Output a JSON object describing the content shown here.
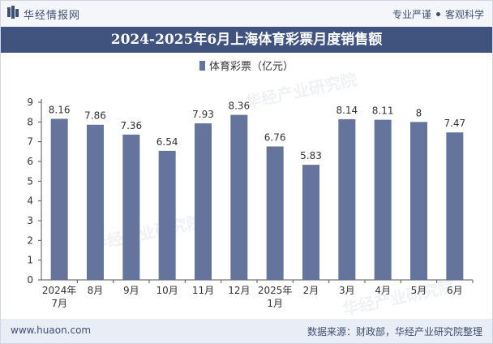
{
  "header": {
    "brand": "华经情报网",
    "tagline_left": "专业严谨",
    "tagline_right": "客观科学"
  },
  "title": "2024-2025年6月上海体育彩票月度销售额",
  "footer": {
    "url": "www.huaon.com",
    "source": "数据来源：财政部，华经产业研究院整理"
  },
  "watermark": "华经产业研究院",
  "colors": {
    "bar": "#65749d",
    "title_bg": "#3f537e",
    "text": "#333333"
  },
  "chart_data": {
    "type": "bar",
    "categories": [
      [
        "2024年",
        "7月"
      ],
      [
        "8月"
      ],
      [
        "9月"
      ],
      [
        "10月"
      ],
      [
        "11月"
      ],
      [
        "12月"
      ],
      [
        "2025年",
        "1月"
      ],
      [
        "2月"
      ],
      [
        "3月"
      ],
      [
        "4月"
      ],
      [
        "5月"
      ],
      [
        "6月"
      ]
    ],
    "series": [
      {
        "name": "体育彩票（亿元）",
        "values": [
          8.16,
          7.86,
          7.36,
          6.54,
          7.93,
          8.36,
          6.76,
          5.83,
          8.14,
          8.11,
          8,
          7.47
        ],
        "labels": [
          "8.16",
          "7.86",
          "7.36",
          "6.54",
          "7.93",
          "8.36",
          "6.76",
          "5.83",
          "8.14",
          "8.11",
          "8",
          "7.47"
        ]
      }
    ],
    "yticks": [
      0,
      1,
      2,
      3,
      4,
      5,
      6,
      7,
      8,
      9
    ],
    "ylim": [
      0,
      9
    ],
    "legend": "top-center",
    "grid": false
  }
}
